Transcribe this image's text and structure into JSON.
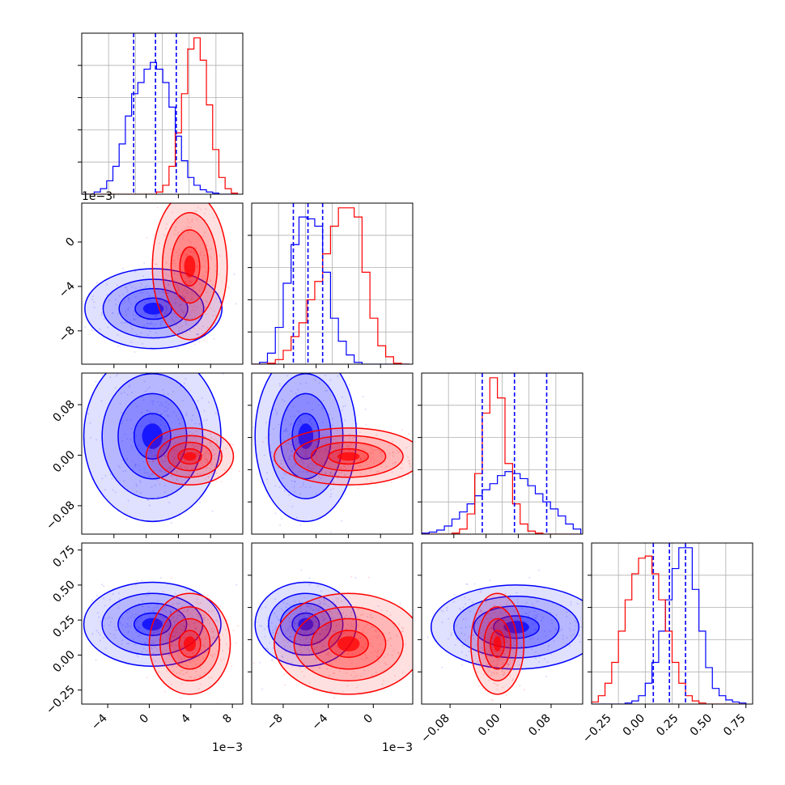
{
  "figure": {
    "type": "corner-plot",
    "series_colors": [
      "#0000ff",
      "#ff0000"
    ]
  },
  "chart_data": [
    {
      "type": "histogram",
      "row": 0,
      "col": 0,
      "xlim": [
        -0.0065,
        0.009
      ],
      "bins": [
        -0.0065,
        -0.0059,
        -0.0053,
        -0.0047,
        -0.0041,
        -0.0035,
        -0.0029,
        -0.0023,
        -0.0017,
        -0.0011,
        -0.0005,
        0.0001,
        0.0007,
        0.0013,
        0.0019,
        0.0025,
        0.0031,
        0.0037,
        0.0043,
        0.0049,
        0.0055,
        0.0061,
        0.0067,
        0.0073,
        0.0079,
        0.0085
      ],
      "series": [
        {
          "color": "#0000ff",
          "counts": [
            0,
            0,
            2,
            5,
            12,
            25,
            45,
            70,
            90,
            100,
            112,
            118,
            112,
            100,
            78,
            52,
            30,
            15,
            8,
            4,
            2,
            1,
            0,
            0,
            0
          ]
        },
        {
          "color": "#ff0000",
          "counts": [
            0,
            0,
            0,
            0,
            0,
            0,
            0,
            0,
            0,
            0,
            0,
            0,
            2,
            8,
            25,
            55,
            90,
            130,
            140,
            120,
            80,
            40,
            15,
            5,
            1
          ]
        }
      ],
      "median_lines": [
        -0.0015,
        0.0006,
        0.0026
      ]
    },
    {
      "type": "scatter-contour",
      "row": 1,
      "col": 0,
      "xlim": [
        -0.0065,
        0.009
      ],
      "ylim": [
        -0.011,
        0.0035
      ],
      "yticks": [
        "0",
        "−4",
        "−8"
      ],
      "ytick_values": [
        0,
        -0.004,
        -0.008
      ],
      "offset_label": "1e−3",
      "series": [
        {
          "color": "#0000ff",
          "center": [
            0.0004,
            -0.006
          ],
          "spread": [
            0.0022,
            0.0012
          ]
        },
        {
          "color": "#ff0000",
          "center": [
            0.0039,
            -0.0022
          ],
          "spread": [
            0.0012,
            0.0022
          ]
        }
      ]
    },
    {
      "type": "histogram",
      "row": 1,
      "col": 1,
      "xlim": [
        -0.0108,
        0.0035
      ],
      "bins": [
        -0.0108,
        -0.0101,
        -0.0094,
        -0.0087,
        -0.008,
        -0.0073,
        -0.0066,
        -0.0059,
        -0.0052,
        -0.0045,
        -0.0038,
        -0.0031,
        -0.0024,
        -0.0017,
        -0.001,
        -0.0003,
        0.0004,
        0.0011,
        0.0018,
        0.0025,
        0.0032
      ],
      "series": [
        {
          "color": "#0000ff",
          "counts": [
            0,
            2,
            12,
            40,
            88,
            130,
            160,
            158,
            150,
            100,
            50,
            25,
            10,
            2,
            0,
            0,
            0,
            0,
            0,
            0
          ]
        },
        {
          "color": "#ff0000",
          "counts": [
            0,
            0,
            1,
            5,
            15,
            30,
            45,
            70,
            90,
            120,
            150,
            170,
            170,
            160,
            100,
            50,
            20,
            8,
            1,
            0
          ]
        }
      ],
      "median_lines": [
        -0.0071,
        -0.0058,
        -0.0045
      ]
    },
    {
      "type": "scatter-contour",
      "row": 2,
      "col": 0,
      "xlim": [
        -0.0065,
        0.009
      ],
      "ylim": [
        -0.125,
        0.13
      ],
      "yticks": [
        "0.08",
        "0.00",
        "−0.08"
      ],
      "ytick_values": [
        0.08,
        0.0,
        -0.08
      ],
      "series": [
        {
          "color": "#0000ff",
          "center": [
            0.0003,
            0.03
          ],
          "spread": [
            0.0022,
            0.045
          ]
        },
        {
          "color": "#ff0000",
          "center": [
            0.0039,
            -0.002
          ],
          "spread": [
            0.0014,
            0.015
          ]
        }
      ]
    },
    {
      "type": "scatter-contour",
      "row": 2,
      "col": 1,
      "xlim": [
        -0.0108,
        0.0035
      ],
      "ylim": [
        -0.125,
        0.13
      ],
      "series": [
        {
          "color": "#0000ff",
          "center": [
            -0.006,
            0.03
          ],
          "spread": [
            0.0015,
            0.045
          ]
        },
        {
          "color": "#ff0000",
          "center": [
            -0.0022,
            -0.002
          ],
          "spread": [
            0.0022,
            0.015
          ]
        }
      ]
    },
    {
      "type": "histogram",
      "row": 2,
      "col": 2,
      "xlim": [
        -0.125,
        0.13
      ],
      "bins": [
        -0.125,
        -0.113,
        -0.101,
        -0.089,
        -0.077,
        -0.065,
        -0.053,
        -0.041,
        -0.029,
        -0.017,
        -0.005,
        0.007,
        0.019,
        0.031,
        0.043,
        0.055,
        0.067,
        0.079,
        0.091,
        0.103,
        0.115,
        0.127
      ],
      "series": [
        {
          "color": "#0000ff",
          "counts": [
            1,
            2,
            4,
            8,
            15,
            22,
            30,
            38,
            44,
            50,
            58,
            62,
            60,
            55,
            48,
            40,
            32,
            25,
            18,
            10,
            5
          ]
        },
        {
          "color": "#ff0000",
          "counts": [
            0,
            0,
            0,
            0,
            1,
            5,
            20,
            60,
            120,
            155,
            135,
            70,
            30,
            10,
            3,
            1,
            0,
            0,
            0,
            0,
            0
          ]
        }
      ],
      "median_lines": [
        -0.029,
        0.022,
        0.073
      ]
    },
    {
      "type": "scatter-contour",
      "row": 3,
      "col": 0,
      "xlim": [
        -0.0065,
        0.009
      ],
      "ylim": [
        -0.35,
        0.8
      ],
      "yticks": [
        "0.75",
        "0.50",
        "0.25",
        "0.00",
        "−0.25"
      ],
      "ytick_values": [
        0.75,
        0.5,
        0.25,
        0.0,
        -0.25
      ],
      "xticks": [
        "−4",
        "0",
        "4",
        "8"
      ],
      "xtick_values": [
        -0.004,
        0.0,
        0.004,
        0.008
      ],
      "offset_label": "1e−3",
      "series": [
        {
          "color": "#0000ff",
          "center": [
            0.0003,
            0.22
          ],
          "spread": [
            0.0022,
            0.1
          ]
        },
        {
          "color": "#ff0000",
          "center": [
            0.0039,
            0.08
          ],
          "spread": [
            0.0013,
            0.12
          ]
        }
      ]
    },
    {
      "type": "scatter-contour",
      "row": 3,
      "col": 1,
      "xlim": [
        -0.0108,
        0.0035
      ],
      "ylim": [
        -0.35,
        0.8
      ],
      "xticks": [
        "−8",
        "−4",
        "0"
      ],
      "xtick_values": [
        -0.008,
        -0.004,
        0.0
      ],
      "offset_label": "1e−3",
      "series": [
        {
          "color": "#0000ff",
          "center": [
            -0.006,
            0.22
          ],
          "spread": [
            0.0015,
            0.1
          ]
        },
        {
          "color": "#ff0000",
          "center": [
            -0.0022,
            0.08
          ],
          "spread": [
            0.0022,
            0.12
          ]
        }
      ]
    },
    {
      "type": "scatter-contour",
      "row": 3,
      "col": 2,
      "xlim": [
        -0.125,
        0.13
      ],
      "ylim": [
        -0.35,
        0.8
      ],
      "xticks": [
        "−0.08",
        "0.00",
        "0.08"
      ],
      "xtick_values": [
        -0.08,
        0.0,
        0.08
      ],
      "series": [
        {
          "color": "#0000ff",
          "center": [
            0.025,
            0.2
          ],
          "spread": [
            0.045,
            0.1
          ]
        },
        {
          "color": "#ff0000",
          "center": [
            -0.005,
            0.08
          ],
          "spread": [
            0.014,
            0.12
          ]
        }
      ]
    },
    {
      "type": "histogram",
      "row": 3,
      "col": 3,
      "xlim": [
        -0.4,
        0.8
      ],
      "bins": [
        -0.4,
        -0.35,
        -0.3,
        -0.25,
        -0.2,
        -0.15,
        -0.1,
        -0.05,
        0.0,
        0.05,
        0.1,
        0.15,
        0.2,
        0.25,
        0.3,
        0.35,
        0.4,
        0.45,
        0.5,
        0.55,
        0.6,
        0.65,
        0.7,
        0.75
      ],
      "series": [
        {
          "color": "#0000ff",
          "counts": [
            0,
            0,
            0,
            0,
            0,
            1,
            3,
            8,
            20,
            40,
            70,
            100,
            130,
            150,
            150,
            110,
            70,
            35,
            15,
            8,
            4,
            2,
            1
          ]
        },
        {
          "color": "#ff0000",
          "counts": [
            2,
            8,
            20,
            40,
            70,
            100,
            125,
            140,
            142,
            125,
            100,
            70,
            40,
            20,
            8,
            3,
            1,
            0,
            0,
            0,
            0,
            0,
            0
          ]
        }
      ],
      "median_lines": [
        0.06,
        0.18,
        0.3
      ],
      "xticks": [
        "−0.25",
        "0.00",
        "0.25",
        "0.50",
        "0.75"
      ],
      "xtick_values": [
        -0.25,
        0.0,
        0.25,
        0.5,
        0.75
      ]
    }
  ]
}
